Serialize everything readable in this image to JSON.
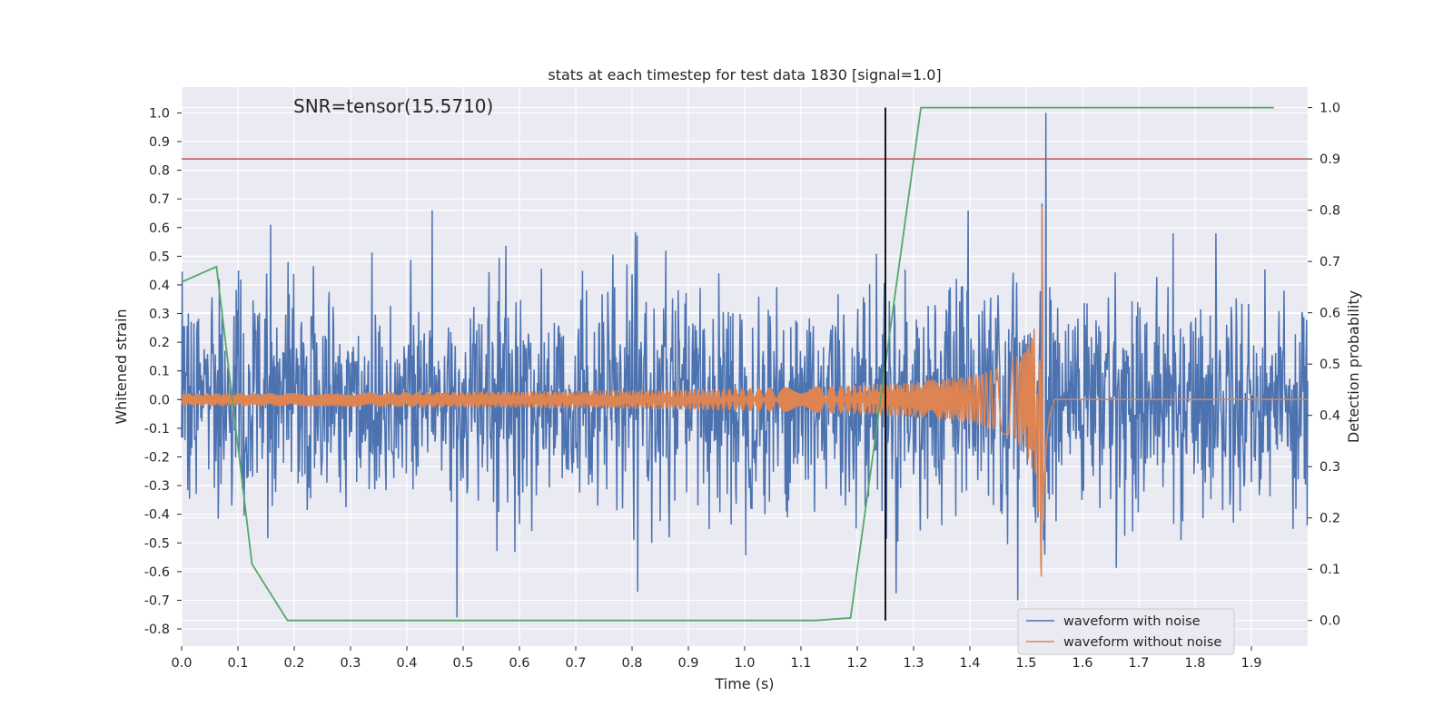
{
  "chart_data": {
    "type": "line",
    "title": "stats at each timestep for test data 1830 [signal=1.0]",
    "xlabel": "Time (s)",
    "ylabel": "Whitened strain",
    "ylabel_right": "Detection probability",
    "xlim": [
      0.0,
      2.0
    ],
    "ylim": [
      -0.86,
      1.09
    ],
    "ylim_right": [
      -0.05,
      1.04
    ],
    "x_ticks": [
      "0.0",
      "0.1",
      "0.2",
      "0.3",
      "0.4",
      "0.5",
      "0.6",
      "0.7",
      "0.8",
      "0.9",
      "1.0",
      "1.1",
      "1.2",
      "1.3",
      "1.4",
      "1.5",
      "1.6",
      "1.7",
      "1.8",
      "1.9"
    ],
    "y_ticks": [
      "-0.8",
      "-0.7",
      "-0.6",
      "-0.5",
      "-0.4",
      "-0.3",
      "-0.2",
      "-0.1",
      "0.0",
      "0.1",
      "0.2",
      "0.3",
      "0.4",
      "0.5",
      "0.6",
      "0.7",
      "0.8",
      "0.9",
      "1.0"
    ],
    "y_ticks_right": [
      "0.0",
      "0.1",
      "0.2",
      "0.3",
      "0.4",
      "0.5",
      "0.6",
      "0.7",
      "0.8",
      "0.9",
      "1.0"
    ],
    "grid": true,
    "legend_position": "lower-right",
    "annotation": "SNR=tensor(15.5710)",
    "colors": {
      "background": "#eaeaf2",
      "grid": "#ffffff",
      "with_noise": "#4c72b0",
      "without_noise": "#dd8452",
      "probability": "#55a868",
      "threshold": "#c44e52",
      "marker": "#000000"
    },
    "series": [
      {
        "name": "waveform with noise",
        "axis": "left",
        "description_of_values": "noisy whitened strain, amplitude mostly within ±0.5 with spikes to ~0.66 and ~-0.76; large spike near t=1.535 reaching 1.0",
        "spikes": [
          {
            "x": 0.489,
            "y": -0.76
          },
          {
            "x": 0.445,
            "y": 0.66
          },
          {
            "x": 0.158,
            "y": 0.61
          },
          {
            "x": 1.535,
            "y": 1.0
          },
          {
            "x": 1.485,
            "y": -0.7
          },
          {
            "x": 0.81,
            "y": -0.67
          }
        ]
      },
      {
        "name": "waveform without noise",
        "axis": "left",
        "description_of_values": "chirp signal with amplitude growing from ~0.02 at t=0 to peak ~0.68 / -0.6 near t=1.53, then flat at 0.0 after t≈1.55",
        "chirp": {
          "t_merge": 1.53,
          "amp_start": 0.022,
          "amp_peak": 0.68,
          "phase_cycles_start": 24
        }
      },
      {
        "name": "",
        "axis": "right",
        "label": "detection probability",
        "x": [
          0.0,
          0.062,
          0.125,
          0.188,
          1.125,
          1.188,
          1.25,
          1.313,
          1.94
        ],
        "y": [
          0.66,
          0.69,
          0.11,
          0.0,
          0.0,
          0.005,
          0.5,
          1.0,
          1.0
        ]
      }
    ],
    "hlines": [
      {
        "y": 0.9,
        "axis": "right"
      }
    ],
    "vlines": [
      {
        "x": 1.25,
        "y_from": 0.0,
        "y_to": 1.0,
        "axis": "right"
      }
    ]
  }
}
